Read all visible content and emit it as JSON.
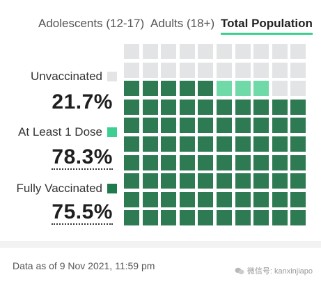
{
  "tabs": [
    {
      "label": "Adolescents (12-17)",
      "active": false
    },
    {
      "label": "Adults (18+)",
      "active": false
    },
    {
      "label": "Total Population",
      "active": true
    }
  ],
  "legend": [
    {
      "label": "Unvaccinated",
      "value": "21.7%",
      "color": "#e3e4e6"
    },
    {
      "label": "At Least 1 Dose",
      "value": "78.3%",
      "color": "#3ccf91"
    },
    {
      "label": "Fully Vaccinated",
      "value": "75.5%",
      "color": "#1f7a4d"
    }
  ],
  "waffle": {
    "columns": 10,
    "rows": 10,
    "cell_counts": {
      "unvaccinated": 22,
      "at_least_1_dose_only": 3,
      "fully_vaccinated": 75
    },
    "colors": {
      "unvaccinated": "#e3e4e6",
      "at_least_1_dose_only": "#6fd9a7",
      "fully_vaccinated": "#2e7a52"
    }
  },
  "footnote": "Data as of 9 Nov 2021, 11:59 pm",
  "watermark": "微信号: kanxinjiapo",
  "watermark_icon": "wechat-icon"
}
